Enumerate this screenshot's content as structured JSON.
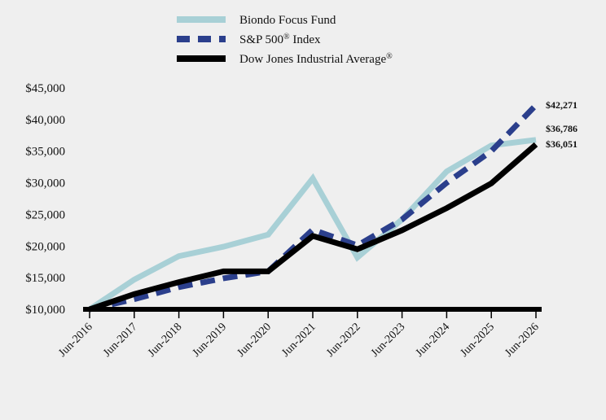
{
  "chart_data": {
    "type": "line",
    "categories": [
      "Jun-2016",
      "Jun-2017",
      "Jun-2018",
      "Jun-2019",
      "Jun-2020",
      "Jun-2021",
      "Jun-2022",
      "Jun-2023",
      "Jun-2024",
      "Jun-2025",
      "Jun-2026"
    ],
    "ylim": [
      10000,
      45000
    ],
    "y_ticks": [
      10000,
      15000,
      20000,
      25000,
      30000,
      35000,
      40000,
      45000
    ],
    "y_tick_labels": [
      "$10,000",
      "$15,000",
      "$20,000",
      "$25,000",
      "$30,000",
      "$35,000",
      "$40,000",
      "$45,000"
    ],
    "legend_position": "top",
    "grid": false,
    "series": [
      {
        "name": "Biondo Focus Fund",
        "color": "#a8d0d6",
        "style": "solid",
        "values": [
          10000,
          14700,
          18400,
          19900,
          21800,
          30700,
          18200,
          24200,
          31800,
          35900,
          36786
        ],
        "end_label": "$36,786"
      },
      {
        "name": "S&P 500",
        "name_sup": "®",
        "name_suffix": " Index",
        "color": "#2b3f8c",
        "style": "dashed",
        "values": [
          10000,
          11600,
          13500,
          14900,
          16000,
          22600,
          20100,
          24200,
          30000,
          35000,
          42271
        ],
        "end_label": "$42,271"
      },
      {
        "name": "Dow Jones Industrial Average",
        "name_sup": "®",
        "name_suffix": "",
        "color": "#000000",
        "style": "solid",
        "values": [
          10000,
          12400,
          14300,
          16000,
          16000,
          21600,
          19500,
          22500,
          26000,
          29900,
          36051
        ],
        "end_label": "$36,051"
      }
    ]
  }
}
